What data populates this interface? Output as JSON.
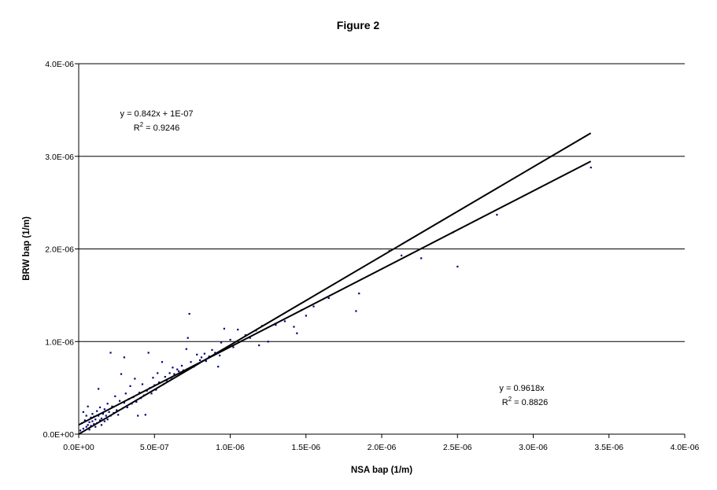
{
  "chart_data": {
    "type": "scatter",
    "title": "Figure 2",
    "xlabel": "NSA bap (1/m)",
    "ylabel": "BRW bap (1/m)",
    "xlim": [
      0,
      4e-06
    ],
    "ylim": [
      0,
      4e-06
    ],
    "x_ticks": [
      0,
      5e-07,
      1e-06,
      1.5e-06,
      2e-06,
      2.5e-06,
      3e-06,
      3.5e-06,
      4e-06
    ],
    "x_tick_labels": [
      "0.0E+00",
      "5.0E-07",
      "1.0E-06",
      "1.5E-06",
      "2.0E-06",
      "2.5E-06",
      "3.0E-06",
      "3.5E-06",
      "4.0E-06"
    ],
    "y_ticks": [
      0,
      1e-06,
      2e-06,
      3e-06,
      4e-06
    ],
    "y_tick_labels": [
      "0.0E+00",
      "1.0E-06",
      "2.0E-06",
      "3.0E-06",
      "4.0E-06"
    ],
    "grid": "horizontal",
    "legend": "none",
    "point_color": "#00007f",
    "line_color": "#000000",
    "series": [
      {
        "points": [
          [
            1e-08,
            4e-08
          ],
          [
            2e-08,
            1.2e-07
          ],
          [
            3e-08,
            6e-08
          ],
          [
            3e-08,
            2.4e-07
          ],
          [
            4e-08,
            1.5e-07
          ],
          [
            5e-08,
            8e-08
          ],
          [
            5e-08,
            2e-07
          ],
          [
            6e-08,
            1e-07
          ],
          [
            6e-08,
            3e-07
          ],
          [
            7e-08,
            1.3e-07
          ],
          [
            7e-08,
            5e-08
          ],
          [
            8e-08,
            1.8e-07
          ],
          [
            8e-08,
            9e-08
          ],
          [
            9e-08,
            1.4e-07
          ],
          [
            9e-08,
            2.2e-07
          ],
          [
            1e-07,
            1.1e-07
          ],
          [
            1e-07,
            1.9e-07
          ],
          [
            1.1e-07,
            8e-08
          ],
          [
            1.1e-07,
            1.6e-07
          ],
          [
            1.2e-07,
            2.5e-07
          ],
          [
            1.2e-07,
            1.2e-07
          ],
          [
            1.3e-07,
            2e-07
          ],
          [
            1.3e-07,
            4.9e-07
          ],
          [
            1.4e-07,
            1.5e-07
          ],
          [
            1.4e-07,
            2.9e-07
          ],
          [
            1.5e-07,
            1.7e-07
          ],
          [
            1.5e-07,
            1e-07
          ],
          [
            1.6e-07,
            2.2e-07
          ],
          [
            1.7e-07,
            1.4e-07
          ],
          [
            1.7e-07,
            2.7e-07
          ],
          [
            1.8e-07,
            2e-07
          ],
          [
            1.9e-07,
            3.3e-07
          ],
          [
            1.9e-07,
            1.6e-07
          ],
          [
            2e-07,
            2.4e-07
          ],
          [
            2.1e-07,
            8.8e-07
          ],
          [
            2.1e-07,
            2e-07
          ],
          [
            2.2e-07,
            3e-07
          ],
          [
            2.3e-07,
            2.3e-07
          ],
          [
            2.4e-07,
            4.1e-07
          ],
          [
            2.5e-07,
            2.6e-07
          ],
          [
            2.6e-07,
            2.1e-07
          ],
          [
            2.7e-07,
            3.6e-07
          ],
          [
            2.8e-07,
            6.5e-07
          ],
          [
            2.9e-07,
            2.8e-07
          ],
          [
            3e-07,
            3.4e-07
          ],
          [
            3e-07,
            8.3e-07
          ],
          [
            3.1e-07,
            4.4e-07
          ],
          [
            3.2e-07,
            2.9e-07
          ],
          [
            3.3e-07,
            3.8e-07
          ],
          [
            3.4e-07,
            5.2e-07
          ],
          [
            3.5e-07,
            3.3e-07
          ],
          [
            3.6e-07,
            4e-07
          ],
          [
            3.7e-07,
            6e-07
          ],
          [
            3.8e-07,
            3.5e-07
          ],
          [
            3.9e-07,
            2e-07
          ],
          [
            4e-07,
            4.5e-07
          ],
          [
            4.1e-07,
            3.9e-07
          ],
          [
            4.2e-07,
            5.4e-07
          ],
          [
            4.3e-07,
            4.2e-07
          ],
          [
            4.4e-07,
            2.1e-07
          ],
          [
            4.5e-07,
            4.7e-07
          ],
          [
            4.6e-07,
            8.8e-07
          ],
          [
            4.7e-07,
            5e-07
          ],
          [
            4.8e-07,
            4.4e-07
          ],
          [
            4.9e-07,
            6.1e-07
          ],
          [
            5e-07,
            5.3e-07
          ],
          [
            5.1e-07,
            4.8e-07
          ],
          [
            5.2e-07,
            6.6e-07
          ],
          [
            5.3e-07,
            5.6e-07
          ],
          [
            5.5e-07,
            7.8e-07
          ],
          [
            5.6e-07,
            5.4e-07
          ],
          [
            5.7e-07,
            6.2e-07
          ],
          [
            5.8e-07,
            5.8e-07
          ],
          [
            6e-07,
            6.6e-07
          ],
          [
            6.1e-07,
            6.1e-07
          ],
          [
            6.2e-07,
            7.2e-07
          ],
          [
            6.3e-07,
            6.5e-07
          ],
          [
            6.5e-07,
            7e-07
          ],
          [
            6.6e-07,
            6.8e-07
          ],
          [
            6.8e-07,
            7.4e-07
          ],
          [
            6.9e-07,
            6.9e-07
          ],
          [
            7.1e-07,
            9.2e-07
          ],
          [
            7.2e-07,
            1.04e-06
          ],
          [
            7.3e-07,
            1.3e-06
          ],
          [
            7.4e-07,
            7.8e-07
          ],
          [
            7.6e-07,
            7.3e-07
          ],
          [
            7.8e-07,
            8.6e-07
          ],
          [
            8e-07,
            8e-07
          ],
          [
            8.1e-07,
            8.3e-07
          ],
          [
            8.3e-07,
            8.7e-07
          ],
          [
            8.4e-07,
            7.9e-07
          ],
          [
            8.6e-07,
            8.4e-07
          ],
          [
            8.8e-07,
            9.1e-07
          ],
          [
            9e-07,
            8.8e-07
          ],
          [
            9.2e-07,
            7.3e-07
          ],
          [
            9.3e-07,
            8.5e-07
          ],
          [
            9.4e-07,
            9.9e-07
          ],
          [
            9.6e-07,
            1.14e-06
          ],
          [
            9.8e-07,
            9.3e-07
          ],
          [
            1e-06,
            1.02e-06
          ],
          [
            1.02e-06,
            9.4e-07
          ],
          [
            1.05e-06,
            1.13e-06
          ],
          [
            1.08e-06,
            1.01e-06
          ],
          [
            1.1e-06,
            1.07e-06
          ],
          [
            1.13e-06,
            1.04e-06
          ],
          [
            1.17e-06,
            1.12e-06
          ],
          [
            1.19e-06,
            9.6e-07
          ],
          [
            1.21e-06,
            1.17e-06
          ],
          [
            1.25e-06,
            1e-06
          ],
          [
            1.3e-06,
            1.18e-06
          ],
          [
            1.36e-06,
            1.22e-06
          ],
          [
            1.42e-06,
            1.16e-06
          ],
          [
            1.44e-06,
            1.09e-06
          ],
          [
            1.47e-06,
            1.34e-06
          ],
          [
            1.5e-06,
            1.28e-06
          ],
          [
            1.55e-06,
            1.38e-06
          ],
          [
            1.65e-06,
            1.47e-06
          ],
          [
            1.83e-06,
            1.33e-06
          ],
          [
            1.85e-06,
            1.52e-06
          ],
          [
            2.05e-06,
            1.98e-06
          ],
          [
            2.13e-06,
            1.93e-06
          ],
          [
            2.26e-06,
            1.9e-06
          ],
          [
            2.47e-06,
            2.18e-06
          ],
          [
            2.5e-06,
            1.81e-06
          ],
          [
            2.76e-06,
            2.37e-06
          ],
          [
            3.38e-06,
            2.88e-06
          ]
        ]
      }
    ],
    "trendlines": [
      {
        "slope": 0.842,
        "intercept": 1e-07,
        "x_range": [
          0,
          3.38e-06
        ],
        "equation": "y = 0.842x + 1E-07",
        "r2_prefix": "R",
        "r2_exp": "2",
        "r2_value": " = 0.9246"
      },
      {
        "slope": 0.9618,
        "intercept": 0,
        "x_range": [
          0,
          3.38e-06
        ],
        "equation": "y = 0.9618x",
        "r2_prefix": "R",
        "r2_exp": "2",
        "r2_value": " = 0.8826"
      }
    ]
  }
}
